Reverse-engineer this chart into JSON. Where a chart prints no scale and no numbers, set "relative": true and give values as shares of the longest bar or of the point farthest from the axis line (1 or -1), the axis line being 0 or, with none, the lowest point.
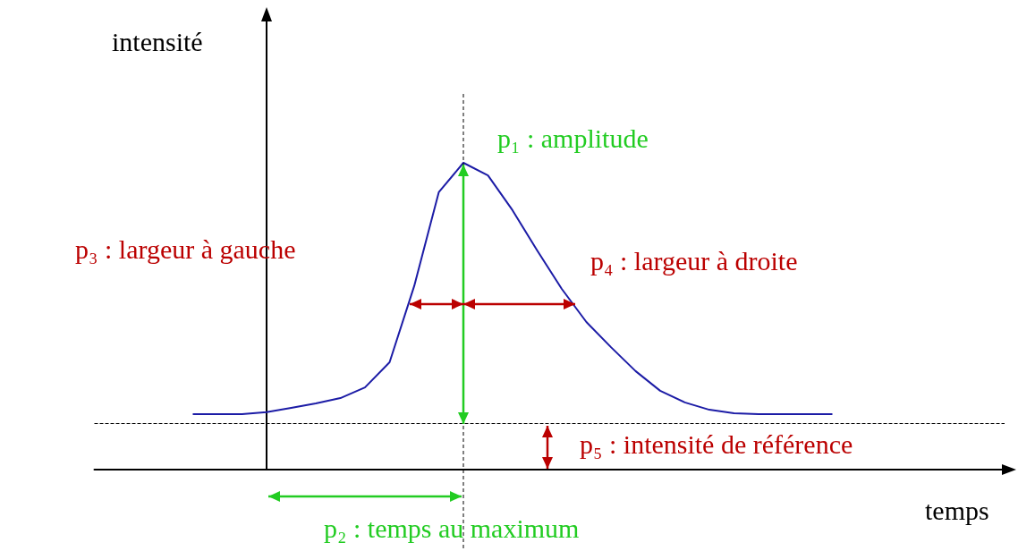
{
  "chart_data": {
    "type": "line",
    "relative": true,
    "xlabel": "temps",
    "ylabel": "intensité",
    "marker": "none",
    "categories": [
      null,
      null,
      null,
      null,
      null,
      null,
      null,
      null,
      null,
      null,
      null,
      null,
      null,
      null,
      null,
      null,
      null,
      null,
      null,
      null,
      null,
      null,
      null,
      null,
      null,
      null,
      null,
      null,
      null,
      null,
      null,
      null,
      null,
      null,
      null,
      null,
      null,
      null
    ],
    "series": [
      {
        "color": "#1c1ca6",
        "values": [
          null,
          null,
          null,
          null,
          0.181,
          0.181,
          0.181,
          0.187,
          0.201,
          0.216,
          0.233,
          0.268,
          0.35,
          0.598,
          0.904,
          1,
          0.959,
          0.845,
          0.714,
          0.589,
          0.481,
          0.399,
          0.321,
          0.257,
          0.219,
          0.195,
          0.184,
          0.181,
          0.181,
          0.181,
          0.181,
          null,
          null,
          null,
          null,
          null,
          null,
          null
        ]
      }
    ],
    "ref_lines": [
      {
        "axis": "y",
        "value": 0.15,
        "line_style": "dashed",
        "color": "#000000"
      }
    ],
    "annotations": [
      "p₁ : amplitude",
      "p₃ : largeur à gauche",
      "p₄ : largeur à droite",
      "p₅ : intensité de référence",
      "p₂ : temps au maximum"
    ]
  }
}
